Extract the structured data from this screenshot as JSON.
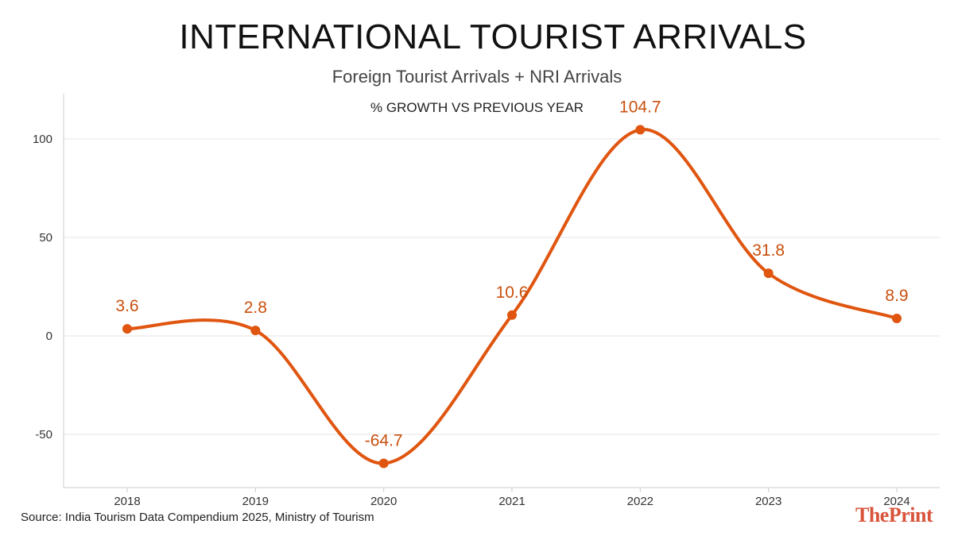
{
  "title": "INTERNATIONAL TOURIST ARRIVALS",
  "subtitle": "Foreign Tourist Arrivals + NRI Arrivals",
  "source": "Source:  India Tourism Data Compendium 2025, Ministry of Tourism",
  "logo": {
    "part1": "The",
    "part2": "Print"
  },
  "colors": {
    "line": "#e0550f",
    "label": "#c9500e",
    "grid": "#e6e6e6",
    "axis": "#cccccc"
  },
  "chart_data": {
    "type": "line",
    "title": "% GROWTH VS PREVIOUS YEAR",
    "xlabel": "",
    "ylabel": "",
    "x": [
      "2018",
      "2019",
      "2020",
      "2021",
      "2022",
      "2023",
      "2024"
    ],
    "series": [
      {
        "name": "% growth",
        "values": [
          3.6,
          2.8,
          -64.7,
          10.6,
          104.7,
          31.8,
          8.9
        ],
        "labels": [
          "3.6",
          "2.8",
          "-64.7",
          "10.6",
          "104.7",
          "31.8",
          "8.9"
        ]
      }
    ],
    "ylim": [
      -77,
      123
    ],
    "yticks": [
      -50,
      0,
      50,
      100
    ],
    "grid": true,
    "smooth": true
  }
}
